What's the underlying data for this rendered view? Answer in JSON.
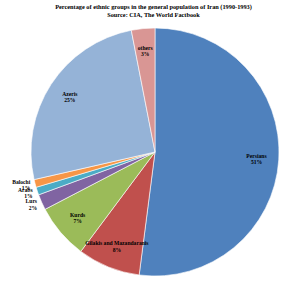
{
  "chart_data": {
    "type": "pie",
    "title": "Percentage of ethnic groups in the general population of Iran (1990-1993)",
    "subtitle": "Source: CIA, The World Factbook",
    "categories": [
      "Persians",
      "Gilakis and Mazandaranis",
      "Kurds",
      "Lurs",
      "Arabs",
      "Balochi",
      "Azeris",
      "others"
    ],
    "values": [
      51,
      8,
      7,
      2,
      1,
      1,
      25,
      3
    ],
    "value_labels": [
      "51%",
      "8%",
      "7%",
      "2%",
      "1%",
      "1%",
      "25%",
      "3%"
    ],
    "colors": [
      "#4f81bd",
      "#c0504d",
      "#9bbb59",
      "#8064a2",
      "#4bacc6",
      "#f79646",
      "#95b3d7",
      "#d99694"
    ],
    "data_labels": true
  }
}
